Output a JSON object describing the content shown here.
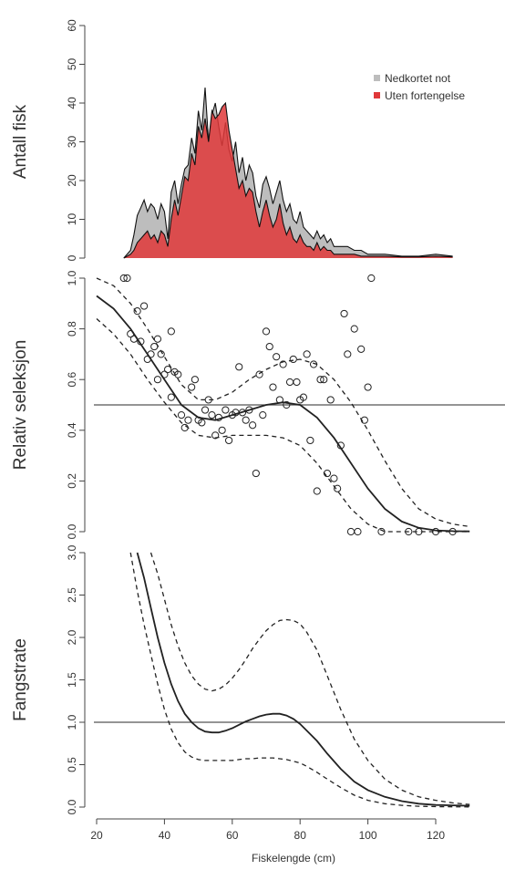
{
  "colors": {
    "gray_fill": "#bdbdbd",
    "red_fill": "#e0383a",
    "line": "#222222",
    "axis": "#444444"
  },
  "chart_data": [
    {
      "id": "panel1",
      "type": "area",
      "ylabel": "Antall fisk",
      "ylim": [
        0,
        60
      ],
      "yticks": [
        0,
        10,
        20,
        30,
        40,
        50,
        60
      ],
      "xlim": [
        20,
        130
      ],
      "legend": {
        "position": "top-right",
        "entries": [
          {
            "name": "Nedkortet not",
            "color": "#bdbdbd"
          },
          {
            "name": "Uten fortengelse",
            "color": "#e0383a"
          }
        ]
      },
      "series": [
        {
          "name": "Nedkortet not",
          "x": [
            28,
            30,
            31,
            32,
            33,
            34,
            35,
            36,
            37,
            38,
            39,
            40,
            41,
            42,
            43,
            44,
            45,
            46,
            47,
            48,
            49,
            50,
            51,
            52,
            53,
            54,
            55,
            56,
            57,
            58,
            59,
            60,
            61,
            62,
            63,
            64,
            65,
            66,
            67,
            68,
            69,
            70,
            71,
            72,
            73,
            74,
            75,
            76,
            77,
            78,
            79,
            80,
            81,
            82,
            83,
            84,
            85,
            86,
            87,
            88,
            89,
            90,
            92,
            94,
            96,
            98,
            100,
            105,
            110,
            115,
            120,
            125
          ],
          "y": [
            0,
            2,
            6,
            11,
            13,
            15,
            12,
            14,
            13,
            10,
            14,
            12,
            5,
            17,
            20,
            14,
            19,
            23,
            24,
            31,
            27,
            38,
            33,
            44,
            30,
            37,
            40,
            34,
            29,
            35,
            28,
            25,
            30,
            22,
            26,
            20,
            24,
            22,
            16,
            13,
            19,
            21,
            18,
            14,
            17,
            20,
            15,
            12,
            14,
            10,
            9,
            12,
            8,
            7,
            6,
            5,
            7,
            5,
            6,
            4,
            5,
            3,
            3,
            3,
            2,
            2,
            1,
            1,
            0.5,
            0.5,
            1,
            0.5
          ]
        },
        {
          "name": "Uten fortengelse",
          "x": [
            28,
            30,
            31,
            32,
            33,
            34,
            35,
            36,
            37,
            38,
            39,
            40,
            41,
            42,
            43,
            44,
            45,
            46,
            47,
            48,
            49,
            50,
            51,
            52,
            53,
            54,
            55,
            56,
            57,
            58,
            59,
            60,
            61,
            62,
            63,
            64,
            65,
            66,
            67,
            68,
            69,
            70,
            71,
            72,
            73,
            74,
            75,
            76,
            77,
            78,
            79,
            80,
            81,
            82,
            83,
            84,
            85,
            86,
            87,
            88,
            89,
            90,
            92,
            94,
            96,
            98,
            100,
            105,
            110,
            115,
            120,
            125
          ],
          "y": [
            0,
            1,
            2,
            4,
            5,
            6,
            7,
            5,
            6,
            4,
            7,
            6,
            3,
            10,
            15,
            11,
            16,
            21,
            20,
            27,
            24,
            34,
            31,
            36,
            30,
            38,
            36,
            37,
            39,
            40,
            33,
            28,
            23,
            18,
            20,
            16,
            18,
            17,
            12,
            8,
            12,
            15,
            11,
            8,
            10,
            14,
            9,
            6,
            8,
            5,
            4,
            6,
            4,
            3,
            3,
            2,
            4,
            2,
            3,
            2,
            2,
            1,
            1,
            1,
            1,
            0.5,
            0.5,
            0.5,
            0.3,
            0.3,
            0.5,
            0.3
          ]
        }
      ]
    },
    {
      "id": "panel2",
      "type": "scatter",
      "ylabel": "Relativ seleksjon",
      "ylim": [
        0,
        1
      ],
      "yticks": [
        0.0,
        0.2,
        0.4,
        0.6,
        0.8,
        1.0
      ],
      "ytick_labels": [
        "0.0",
        "0.2",
        "0.4",
        "0.6",
        "0.8",
        "1.0"
      ],
      "xlim": [
        20,
        130
      ],
      "hline": 0.5,
      "points": [
        [
          28,
          1
        ],
        [
          29,
          1
        ],
        [
          30,
          0.78
        ],
        [
          31,
          0.76
        ],
        [
          32,
          0.87
        ],
        [
          33,
          0.75
        ],
        [
          34,
          0.89
        ],
        [
          35,
          0.68
        ],
        [
          36,
          0.7
        ],
        [
          37,
          0.73
        ],
        [
          38,
          0.6
        ],
        [
          38,
          0.76
        ],
        [
          39,
          0.7
        ],
        [
          40,
          0.62
        ],
        [
          41,
          0.64
        ],
        [
          42,
          0.79
        ],
        [
          42,
          0.53
        ],
        [
          43,
          0.63
        ],
        [
          44,
          0.62
        ],
        [
          45,
          0.46
        ],
        [
          46,
          0.41
        ],
        [
          47,
          0.44
        ],
        [
          48,
          0.57
        ],
        [
          49,
          0.6
        ],
        [
          50,
          0.44
        ],
        [
          51,
          0.43
        ],
        [
          52,
          0.48
        ],
        [
          53,
          0.52
        ],
        [
          54,
          0.46
        ],
        [
          55,
          0.38
        ],
        [
          56,
          0.45
        ],
        [
          57,
          0.4
        ],
        [
          58,
          0.48
        ],
        [
          59,
          0.36
        ],
        [
          60,
          0.46
        ],
        [
          61,
          0.47
        ],
        [
          62,
          0.65
        ],
        [
          63,
          0.47
        ],
        [
          64,
          0.44
        ],
        [
          65,
          0.48
        ],
        [
          66,
          0.42
        ],
        [
          67,
          0.23
        ],
        [
          68,
          0.62
        ],
        [
          69,
          0.46
        ],
        [
          70,
          0.79
        ],
        [
          71,
          0.73
        ],
        [
          72,
          0.57
        ],
        [
          73,
          0.69
        ],
        [
          74,
          0.52
        ],
        [
          75,
          0.66
        ],
        [
          76,
          0.5
        ],
        [
          77,
          0.59
        ],
        [
          78,
          0.68
        ],
        [
          79,
          0.59
        ],
        [
          80,
          0.52
        ],
        [
          81,
          0.53
        ],
        [
          82,
          0.7
        ],
        [
          83,
          0.36
        ],
        [
          84,
          0.66
        ],
        [
          85,
          0.16
        ],
        [
          86,
          0.6
        ],
        [
          87,
          0.6
        ],
        [
          88,
          0.23
        ],
        [
          89,
          0.52
        ],
        [
          90,
          0.21
        ],
        [
          91,
          0.17
        ],
        [
          92,
          0.34
        ],
        [
          93,
          0.86
        ],
        [
          94,
          0.7
        ],
        [
          95,
          0
        ],
        [
          96,
          0.8
        ],
        [
          97,
          0
        ],
        [
          98,
          0.72
        ],
        [
          99,
          0.44
        ],
        [
          100,
          0.57
        ],
        [
          101,
          1
        ],
        [
          104,
          0
        ],
        [
          112,
          0
        ],
        [
          115,
          0
        ],
        [
          120,
          0
        ],
        [
          125,
          0
        ]
      ],
      "fit": {
        "x": [
          20,
          25,
          30,
          35,
          40,
          45,
          50,
          55,
          60,
          65,
          70,
          75,
          80,
          85,
          90,
          95,
          100,
          105,
          110,
          115,
          120,
          125,
          130
        ],
        "y": [
          0.93,
          0.88,
          0.8,
          0.7,
          0.6,
          0.5,
          0.45,
          0.44,
          0.46,
          0.48,
          0.5,
          0.51,
          0.5,
          0.45,
          0.37,
          0.27,
          0.17,
          0.09,
          0.04,
          0.015,
          0.005,
          0.002,
          0.001
        ]
      },
      "ci_upper": {
        "x": [
          20,
          25,
          30,
          35,
          40,
          45,
          50,
          55,
          60,
          65,
          70,
          75,
          80,
          85,
          90,
          95,
          100,
          105,
          110,
          115,
          120,
          125,
          130
        ],
        "y": [
          1.0,
          0.97,
          0.9,
          0.8,
          0.69,
          0.58,
          0.52,
          0.52,
          0.55,
          0.6,
          0.64,
          0.67,
          0.68,
          0.66,
          0.6,
          0.51,
          0.4,
          0.28,
          0.17,
          0.09,
          0.05,
          0.03,
          0.02
        ]
      },
      "ci_lower": {
        "x": [
          20,
          25,
          30,
          35,
          40,
          45,
          50,
          55,
          60,
          65,
          70,
          75,
          80,
          85,
          90,
          95,
          100,
          105,
          110,
          115,
          120,
          125,
          130
        ],
        "y": [
          0.84,
          0.78,
          0.7,
          0.6,
          0.51,
          0.43,
          0.38,
          0.37,
          0.38,
          0.38,
          0.38,
          0.37,
          0.34,
          0.27,
          0.18,
          0.09,
          0.03,
          0,
          0,
          0,
          0,
          0,
          0
        ]
      }
    },
    {
      "id": "panel3",
      "type": "line",
      "ylabel": "Fangstrate",
      "xlabel": "Fiskelengde (cm)",
      "ylim": [
        0,
        3
      ],
      "yticks": [
        0.0,
        0.5,
        1.0,
        1.5,
        2.0,
        2.5,
        3.0
      ],
      "ytick_labels": [
        "0.0",
        "0.5",
        "1.0",
        "1.5",
        "2.0",
        "2.5",
        "3.0"
      ],
      "xlim": [
        20,
        130
      ],
      "xticks": [
        20,
        40,
        60,
        80,
        100,
        120
      ],
      "hline": 1.0,
      "fit": {
        "x": [
          32,
          34,
          36,
          38,
          40,
          42,
          44,
          46,
          48,
          50,
          52,
          54,
          56,
          58,
          60,
          62,
          64,
          66,
          68,
          70,
          72,
          74,
          76,
          78,
          80,
          82,
          85,
          88,
          92,
          96,
          100,
          105,
          110,
          115,
          120,
          125,
          130
        ],
        "y": [
          3.0,
          2.7,
          2.35,
          2.0,
          1.7,
          1.45,
          1.25,
          1.1,
          1.0,
          0.93,
          0.89,
          0.88,
          0.88,
          0.9,
          0.93,
          0.97,
          1.01,
          1.04,
          1.07,
          1.09,
          1.1,
          1.1,
          1.08,
          1.04,
          0.98,
          0.9,
          0.78,
          0.63,
          0.45,
          0.3,
          0.2,
          0.12,
          0.07,
          0.04,
          0.025,
          0.02,
          0.015
        ]
      },
      "ci_upper": {
        "x": [
          36,
          38,
          40,
          42,
          44,
          46,
          48,
          50,
          52,
          54,
          56,
          58,
          60,
          62,
          64,
          66,
          68,
          70,
          72,
          74,
          76,
          78,
          80,
          82,
          85,
          88,
          92,
          96,
          100,
          105,
          110,
          115,
          120,
          125,
          130
        ],
        "y": [
          3.0,
          2.75,
          2.45,
          2.15,
          1.9,
          1.7,
          1.55,
          1.45,
          1.39,
          1.37,
          1.39,
          1.44,
          1.52,
          1.62,
          1.74,
          1.87,
          1.98,
          2.08,
          2.15,
          2.2,
          2.21,
          2.2,
          2.16,
          2.06,
          1.85,
          1.55,
          1.15,
          0.8,
          0.55,
          0.33,
          0.2,
          0.12,
          0.08,
          0.05,
          0.03
        ]
      },
      "ci_lower": {
        "x": [
          30,
          32,
          34,
          36,
          38,
          40,
          42,
          44,
          46,
          48,
          50,
          52,
          54,
          56,
          58,
          60,
          62,
          64,
          66,
          68,
          70,
          72,
          74,
          76,
          78,
          80,
          82,
          85,
          88,
          92,
          96,
          100,
          105,
          110,
          115,
          120,
          125,
          130
        ],
        "y": [
          3.0,
          2.55,
          2.15,
          1.8,
          1.45,
          1.15,
          0.92,
          0.76,
          0.65,
          0.59,
          0.56,
          0.55,
          0.55,
          0.55,
          0.55,
          0.55,
          0.56,
          0.57,
          0.57,
          0.58,
          0.58,
          0.58,
          0.57,
          0.56,
          0.54,
          0.52,
          0.48,
          0.41,
          0.33,
          0.23,
          0.14,
          0.08,
          0.04,
          0.02,
          0.01,
          0.005,
          0.003,
          0.002
        ]
      }
    }
  ]
}
